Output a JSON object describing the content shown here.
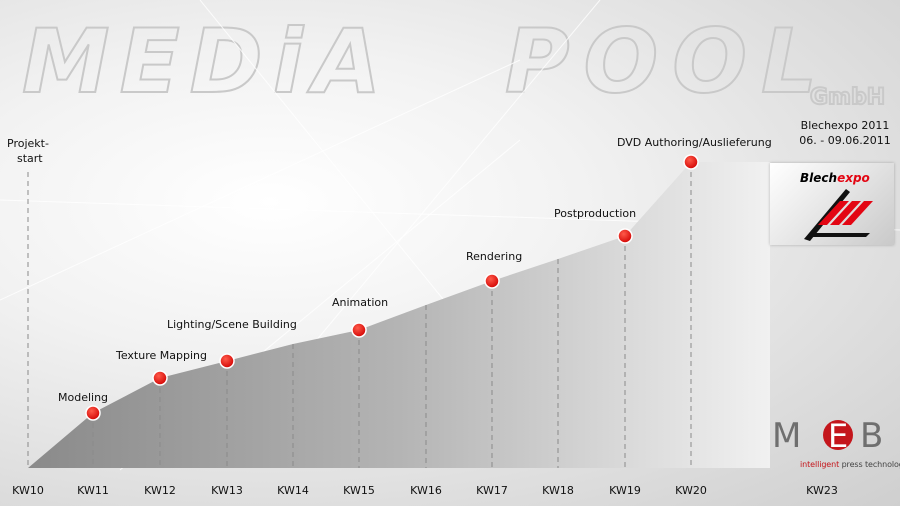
{
  "watermark": {
    "line1": "MEDiA",
    "line2": "POOL",
    "suffix": "GmbH"
  },
  "start_label": {
    "line1": "Projekt-",
    "line2": "start"
  },
  "weeks": [
    "KW10",
    "KW11",
    "KW12",
    "KW13",
    "KW14",
    "KW15",
    "KW16",
    "KW17",
    "KW18",
    "KW19",
    "KW20",
    "KW23"
  ],
  "milestones": [
    {
      "week": "KW11",
      "label": "Modeling"
    },
    {
      "week": "KW12",
      "label": "Texture Mapping"
    },
    {
      "week": "KW13",
      "label": "Lighting/Scene Building"
    },
    {
      "week": "KW15",
      "label": "Animation"
    },
    {
      "week": "KW17",
      "label": "Rendering"
    },
    {
      "week": "KW19",
      "label": "Postproduction"
    },
    {
      "week": "KW20",
      "label": "DVD Authoring/Auslieferung"
    }
  ],
  "event": {
    "line1": "Blechexpo 2011",
    "line2": "06. - 09.06.2011"
  },
  "event_logo": {
    "part1": "Blech",
    "part2": "expo"
  },
  "company_logo": {
    "letters": [
      "M",
      "E",
      "B"
    ],
    "tagline_prefix": "intelligent",
    "tagline_rest": " press technology"
  },
  "colors": {
    "marker": "#e60000",
    "area_dark": "#8f8f8f",
    "area_light": "#ececec",
    "accent_red": "#c4161c"
  }
}
